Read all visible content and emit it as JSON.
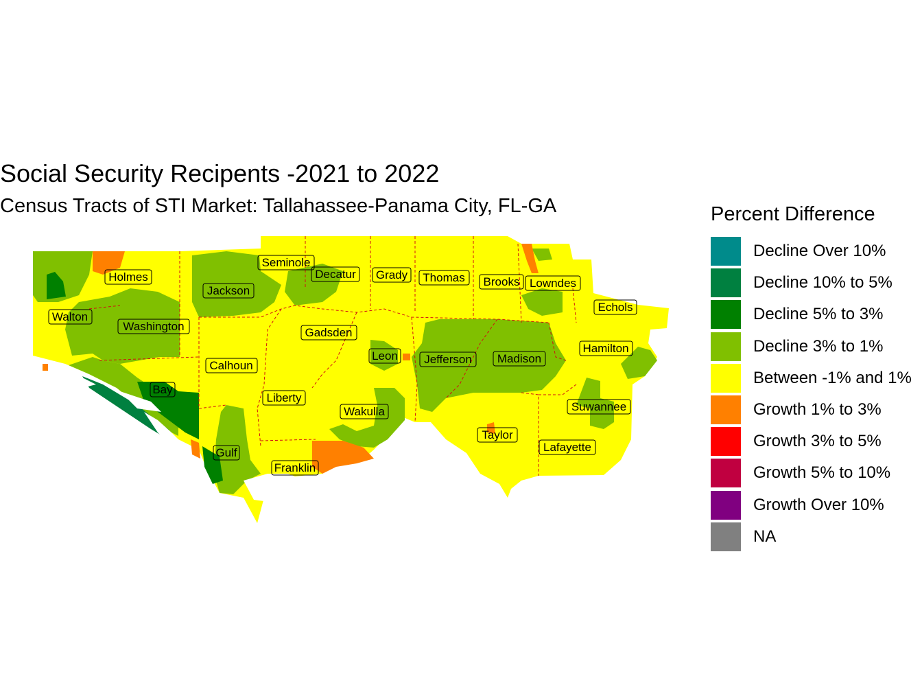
{
  "title": "Social Security Recipents -2021 to 2022",
  "subtitle": "Census Tracts of STI Market: Tallahassee-Panama City, FL-GA",
  "legend": {
    "title": "Percent Difference",
    "items": [
      {
        "label": "Decline Over 10%",
        "color": "#008b8b"
      },
      {
        "label": "Decline 10% to 5%",
        "color": "#008040"
      },
      {
        "label": "Decline 5% to 3%",
        "color": "#008000"
      },
      {
        "label": "Decline 3% to 1%",
        "color": "#80c000"
      },
      {
        "label": "Between -1% and 1%",
        "color": "#ffff00"
      },
      {
        "label": "Growth 1% to 3%",
        "color": "#ff8000"
      },
      {
        "label": "Growth 3% to 5%",
        "color": "#ff0000"
      },
      {
        "label": "Growth 5% to 10%",
        "color": "#c00040"
      },
      {
        "label": "Growth Over 10%",
        "color": "#800080"
      },
      {
        "label": "NA",
        "color": "#808080"
      }
    ]
  },
  "counties": [
    {
      "name": "Holmes"
    },
    {
      "name": "Jackson"
    },
    {
      "name": "Seminole"
    },
    {
      "name": "Decatur"
    },
    {
      "name": "Grady"
    },
    {
      "name": "Thomas"
    },
    {
      "name": "Brooks"
    },
    {
      "name": "Lowndes"
    },
    {
      "name": "Echols"
    },
    {
      "name": "Walton"
    },
    {
      "name": "Washington"
    },
    {
      "name": "Gadsden"
    },
    {
      "name": "Hamilton"
    },
    {
      "name": "Leon"
    },
    {
      "name": "Jefferson"
    },
    {
      "name": "Madison"
    },
    {
      "name": "Calhoun"
    },
    {
      "name": "Bay"
    },
    {
      "name": "Liberty"
    },
    {
      "name": "Wakulla"
    },
    {
      "name": "Suwannee"
    },
    {
      "name": "Taylor"
    },
    {
      "name": "Gulf"
    },
    {
      "name": "Lafayette"
    },
    {
      "name": "Franklin"
    }
  ]
}
